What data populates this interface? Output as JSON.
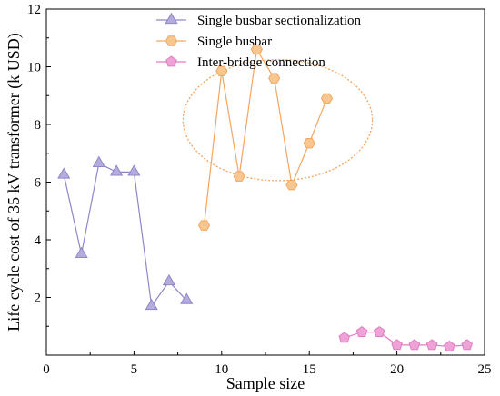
{
  "chart_data": {
    "type": "line",
    "xlabel": "Sample size",
    "ylabel": "Life cycle cost of 35 kV transformer (k USD)",
    "xlim": [
      0,
      25
    ],
    "ylim": [
      0,
      12
    ],
    "xticks": [
      0,
      5,
      10,
      15,
      20,
      25
    ],
    "yticks": [
      2,
      4,
      6,
      8,
      10,
      12
    ],
    "grid": false,
    "legend_position": "top-center",
    "series": [
      {
        "name": "Single busbar sectionalization",
        "marker": "triangle",
        "color": "#8f86c9",
        "fill": "#b4acdc",
        "x": [
          1,
          2,
          3,
          4,
          5,
          6,
          7,
          8
        ],
        "y": [
          6.25,
          3.5,
          6.65,
          6.35,
          6.35,
          1.7,
          2.55,
          1.9
        ]
      },
      {
        "name": "Single busbar",
        "marker": "hexagon",
        "color": "#f2a660",
        "fill": "#f8c78f",
        "x": [
          9,
          10,
          11,
          12,
          13,
          14,
          15,
          16
        ],
        "y": [
          4.5,
          9.85,
          6.2,
          10.6,
          9.6,
          5.9,
          7.35,
          8.9
        ]
      },
      {
        "name": "Inter-bridge connection",
        "marker": "pentagon",
        "color": "#e07cc3",
        "fill": "#eea2d6",
        "x": [
          17,
          18,
          19,
          20,
          21,
          22,
          23,
          24
        ],
        "y": [
          0.6,
          0.8,
          0.8,
          0.35,
          0.35,
          0.35,
          0.3,
          0.35
        ]
      }
    ],
    "annotations": [
      {
        "shape": "dotted-ellipse",
        "color": "#f2a660",
        "center": [
          13.2,
          8.15
        ],
        "rx": 5.4,
        "ry": 2.1
      }
    ]
  }
}
